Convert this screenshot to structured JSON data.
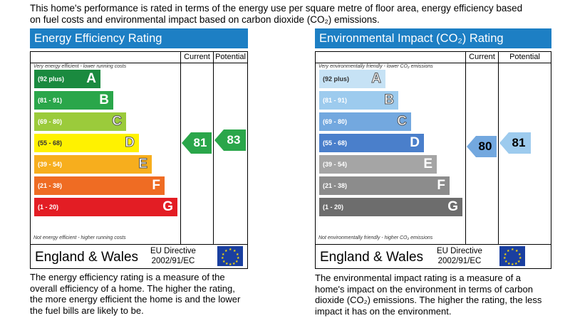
{
  "intro": "This home's performance is rated in terms of the energy use per square metre of floor area, energy efficiency based on fuel costs and environmental impact based on carbon dioxide (CO₂) emissions.",
  "energy": {
    "title": "Energy Efficiency Rating",
    "col_current": "Current",
    "col_potential": "Potential",
    "top_note": "Very energy efficient - lower running costs",
    "bottom_note": "Not energy efficient - higher running costs",
    "bands": [
      {
        "range": "(92 plus)",
        "letter": "A",
        "color": "#1a8a3f"
      },
      {
        "range": "(81 - 91)",
        "letter": "B",
        "color": "#2aa64a"
      },
      {
        "range": "(69 - 80)",
        "letter": "C",
        "color": "#9bcb3b"
      },
      {
        "range": "(55 - 68)",
        "letter": "D",
        "color": "#fff200"
      },
      {
        "range": "(39 - 54)",
        "letter": "E",
        "color": "#f7ae1d"
      },
      {
        "range": "(21 - 38)",
        "letter": "F",
        "color": "#ef6c23"
      },
      {
        "range": "(1 - 20)",
        "letter": "G",
        "color": "#e31d24"
      }
    ],
    "current": "81",
    "potential": "83",
    "current_color": "#2aa64a",
    "potential_color": "#2aa64a",
    "region": "England & Wales",
    "directive": "EU Directive\n2002/91/EC",
    "description": "The energy efficiency rating is a measure of the overall efficiency of a home. The higher the rating, the more energy efficient the home is and the lower the fuel bills are likely to be."
  },
  "environment": {
    "title": "Environmental Impact (CO₂) Rating",
    "col_current": "Current",
    "col_potential": "Potential",
    "top_note": "Very environmentally friendly - lower CO₂ emissions",
    "bottom_note": "Not environmentally friendly - higher CO₂ emissions",
    "bands": [
      {
        "range": "(92 plus)",
        "letter": "A",
        "color": "#c6e2f5"
      },
      {
        "range": "(81 - 91)",
        "letter": "B",
        "color": "#9dcbee"
      },
      {
        "range": "(69 - 80)",
        "letter": "C",
        "color": "#73a8df"
      },
      {
        "range": "(55 - 68)",
        "letter": "D",
        "color": "#4a7fcb"
      },
      {
        "range": "(39 - 54)",
        "letter": "E",
        "color": "#a5a5a5"
      },
      {
        "range": "(21 - 38)",
        "letter": "F",
        "color": "#8c8c8c"
      },
      {
        "range": "(1 - 20)",
        "letter": "G",
        "color": "#6d6d6d"
      }
    ],
    "current": "80",
    "potential": "81",
    "current_color": "#73a8df",
    "potential_color": "#9dcbee",
    "region": "England & Wales",
    "directive": "EU Directive\n2002/91/EC",
    "description": "The environmental impact rating is a measure of a home's impact on the environment in terms of carbon dioxide (CO₂) emissions. The higher the rating, the less impact it has on the environment."
  }
}
